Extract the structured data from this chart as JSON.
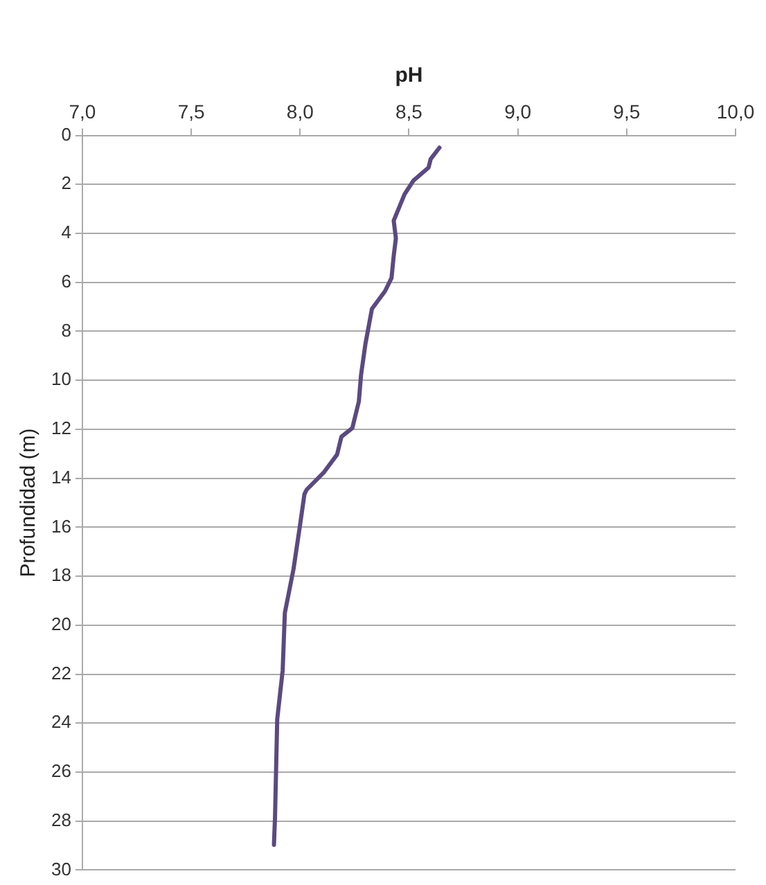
{
  "chart_data": {
    "type": "line",
    "xlabel": "pH",
    "ylabel": "Profundidad (m)",
    "x": [
      8.64,
      8.6,
      8.59,
      8.52,
      8.48,
      8.43,
      8.44,
      8.43,
      8.42,
      8.39,
      8.33,
      8.3,
      8.28,
      8.27,
      8.24,
      8.19,
      8.17,
      8.11,
      8.03,
      8.02,
      8.0,
      7.97,
      7.93,
      7.92,
      7.895,
      7.885,
      7.88
    ],
    "series": [
      {
        "color": "#5b4a80",
        "values": [
          0.5,
          0.96,
          1.31,
          1.85,
          2.4,
          3.48,
          4.2,
          4.92,
          5.82,
          6.36,
          7.08,
          8.52,
          9.78,
          10.86,
          11.95,
          12.3,
          13.03,
          13.75,
          14.47,
          14.65,
          15.9,
          17.7,
          19.5,
          21.85,
          23.84,
          27.8,
          28.97
        ]
      }
    ],
    "xlim": [
      7,
      10
    ],
    "xticks": [
      {
        "value": 7,
        "label": "7,0"
      },
      {
        "value": 7.5,
        "label": "7,5"
      },
      {
        "value": 8,
        "label": "8,0"
      },
      {
        "value": 8.5,
        "label": "8,5"
      },
      {
        "value": 9,
        "label": "9,0"
      },
      {
        "value": 9.5,
        "label": "9,5"
      },
      {
        "value": 10,
        "label": "10,0"
      }
    ],
    "ylim": [
      30,
      0
    ],
    "yticks": [
      0,
      2,
      4,
      6,
      8,
      10,
      12,
      14,
      16,
      18,
      20,
      22,
      24,
      26,
      28,
      30
    ],
    "grid": "y",
    "legend": false,
    "marker": "none",
    "line_style": "solid"
  }
}
